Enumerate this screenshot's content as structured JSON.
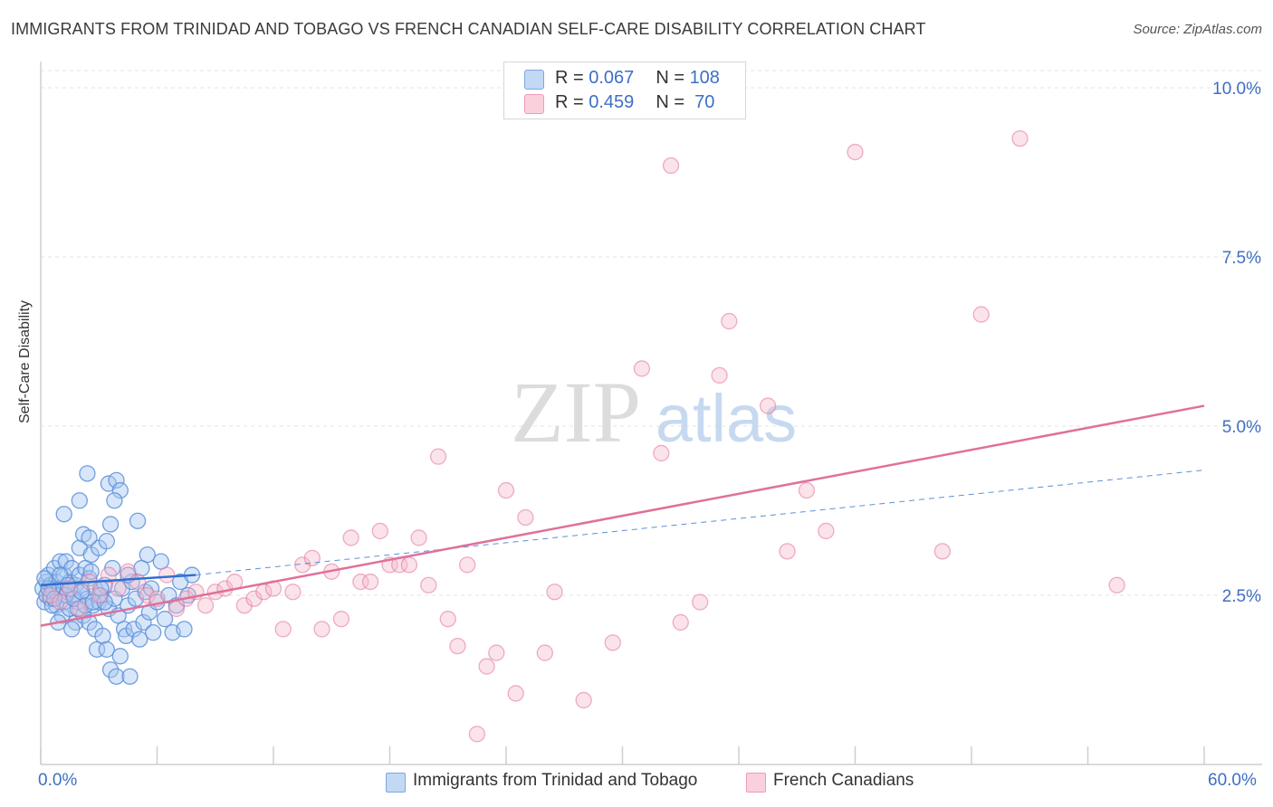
{
  "header": {
    "title": "IMMIGRANTS FROM TRINIDAD AND TOBAGO VS FRENCH CANADIAN SELF-CARE DISABILITY CORRELATION CHART",
    "source": "Source: ZipAtlas.com"
  },
  "watermark": {
    "text_zip": "ZIP",
    "text_atlas": "atlas"
  },
  "legend_top": {
    "series1": {
      "r_label": "R = ",
      "r_value": "0.067",
      "n_label": "N = ",
      "n_value": "108",
      "color": "#a9c8f2"
    },
    "series2": {
      "r_label": "R = ",
      "r_value": "0.459",
      "n_label": "N = ",
      "n_value": " 70",
      "color": "#f6b8cb"
    }
  },
  "chart_data": {
    "type": "scatter",
    "title": "IMMIGRANTS FROM TRINIDAD AND TOBAGO VS FRENCH CANADIAN SELF-CARE DISABILITY CORRELATION CHART",
    "xlabel": "",
    "ylabel": "Self-Care Disability",
    "xlim": [
      0,
      60
    ],
    "ylim": [
      0,
      10.5
    ],
    "x_tick_labels": [
      "0.0%",
      "60.0%"
    ],
    "y_ticks": [
      2.5,
      5.0,
      7.5,
      10.0
    ],
    "y_tick_labels": [
      "2.5%",
      "5.0%",
      "7.5%",
      "10.0%"
    ],
    "grid": true,
    "legend_placement": "bottom",
    "series": [
      {
        "name": "Immigrants from Trinidad and Tobago",
        "color": "#5b8fd9",
        "fill": "#a9c8f2",
        "trend": {
          "x": [
            0,
            8
          ],
          "y": [
            2.65,
            2.8
          ],
          "extended_to": [
            60,
            4.35
          ]
        },
        "points": [
          [
            0.1,
            2.6
          ],
          [
            0.2,
            2.4
          ],
          [
            0.3,
            2.7
          ],
          [
            0.3,
            2.5
          ],
          [
            0.4,
            2.8
          ],
          [
            0.5,
            2.65
          ],
          [
            0.5,
            2.45
          ],
          [
            0.6,
            2.55
          ],
          [
            0.7,
            2.9
          ],
          [
            0.8,
            2.35
          ],
          [
            0.8,
            2.7
          ],
          [
            0.9,
            2.5
          ],
          [
            1.0,
            3.0
          ],
          [
            1.0,
            2.6
          ],
          [
            1.1,
            2.2
          ],
          [
            1.2,
            2.8
          ],
          [
            1.2,
            2.4
          ],
          [
            1.3,
            3.0
          ],
          [
            1.4,
            2.55
          ],
          [
            1.5,
            2.3
          ],
          [
            1.5,
            2.7
          ],
          [
            1.6,
            2.9
          ],
          [
            1.7,
            2.5
          ],
          [
            1.8,
            2.1
          ],
          [
            1.8,
            2.65
          ],
          [
            1.9,
            2.4
          ],
          [
            2.0,
            3.2
          ],
          [
            2.0,
            2.8
          ],
          [
            2.1,
            2.6
          ],
          [
            2.2,
            2.2
          ],
          [
            2.2,
            3.4
          ],
          [
            2.3,
            2.9
          ],
          [
            2.4,
            2.45
          ],
          [
            2.5,
            2.1
          ],
          [
            2.5,
            2.75
          ],
          [
            2.6,
            3.1
          ],
          [
            2.7,
            2.35
          ],
          [
            2.8,
            2.0
          ],
          [
            2.8,
            2.6
          ],
          [
            2.9,
            1.7
          ],
          [
            3.0,
            2.4
          ],
          [
            3.0,
            3.2
          ],
          [
            3.1,
            2.5
          ],
          [
            3.2,
            1.9
          ],
          [
            3.3,
            2.65
          ],
          [
            3.4,
            1.7
          ],
          [
            3.5,
            2.3
          ],
          [
            3.6,
            1.4
          ],
          [
            3.7,
            2.9
          ],
          [
            3.8,
            2.45
          ],
          [
            3.9,
            1.3
          ],
          [
            4.0,
            2.2
          ],
          [
            4.1,
            1.6
          ],
          [
            4.2,
            2.6
          ],
          [
            4.3,
            2.0
          ],
          [
            4.4,
            1.9
          ],
          [
            4.5,
            2.35
          ],
          [
            4.6,
            1.3
          ],
          [
            4.7,
            2.7
          ],
          [
            4.8,
            2.0
          ],
          [
            4.9,
            2.45
          ],
          [
            5.0,
            3.6
          ],
          [
            5.1,
            1.85
          ],
          [
            5.2,
            2.9
          ],
          [
            5.3,
            2.1
          ],
          [
            5.4,
            2.55
          ],
          [
            5.5,
            3.1
          ],
          [
            5.6,
            2.25
          ],
          [
            5.7,
            2.6
          ],
          [
            5.8,
            1.95
          ],
          [
            6.0,
            2.4
          ],
          [
            6.2,
            3.0
          ],
          [
            6.4,
            2.15
          ],
          [
            6.6,
            2.5
          ],
          [
            6.8,
            1.95
          ],
          [
            7.0,
            2.35
          ],
          [
            7.2,
            2.7
          ],
          [
            7.4,
            2.0
          ],
          [
            7.6,
            2.5
          ],
          [
            7.8,
            2.8
          ],
          [
            2.4,
            4.3
          ],
          [
            2.0,
            3.9
          ],
          [
            3.5,
            4.15
          ],
          [
            3.9,
            4.2
          ],
          [
            4.1,
            4.05
          ],
          [
            3.8,
            3.9
          ],
          [
            1.2,
            3.7
          ],
          [
            2.5,
            3.35
          ],
          [
            3.6,
            3.55
          ],
          [
            3.4,
            3.3
          ],
          [
            2.6,
            2.85
          ],
          [
            1.9,
            2.3
          ],
          [
            0.9,
            2.1
          ],
          [
            1.6,
            2.0
          ],
          [
            1.3,
            2.5
          ],
          [
            0.6,
            2.35
          ],
          [
            0.4,
            2.6
          ],
          [
            0.2,
            2.75
          ],
          [
            0.7,
            2.45
          ],
          [
            1.0,
            2.8
          ],
          [
            1.4,
            2.65
          ],
          [
            1.7,
            2.45
          ],
          [
            2.1,
            2.55
          ],
          [
            2.3,
            2.35
          ],
          [
            2.7,
            2.4
          ],
          [
            3.1,
            2.6
          ],
          [
            3.3,
            2.4
          ],
          [
            4.5,
            2.8
          ]
        ]
      },
      {
        "name": "French Canadians",
        "color": "#e0709a",
        "fill": "#f6b8cb",
        "trend": {
          "x": [
            0,
            60
          ],
          "y": [
            2.05,
            5.3
          ]
        },
        "points": [
          [
            0.5,
            2.5
          ],
          [
            1.0,
            2.4
          ],
          [
            1.5,
            2.6
          ],
          [
            2.0,
            2.3
          ],
          [
            2.5,
            2.7
          ],
          [
            3.0,
            2.5
          ],
          [
            3.5,
            2.8
          ],
          [
            4.0,
            2.6
          ],
          [
            4.5,
            2.85
          ],
          [
            5.0,
            2.7
          ],
          [
            5.5,
            2.5
          ],
          [
            6.0,
            2.45
          ],
          [
            6.5,
            2.8
          ],
          [
            7.0,
            2.3
          ],
          [
            7.5,
            2.45
          ],
          [
            8.0,
            2.55
          ],
          [
            8.5,
            2.35
          ],
          [
            9.0,
            2.55
          ],
          [
            9.5,
            2.6
          ],
          [
            10.0,
            2.7
          ],
          [
            10.5,
            2.35
          ],
          [
            11.0,
            2.45
          ],
          [
            11.5,
            2.55
          ],
          [
            12.0,
            2.6
          ],
          [
            12.5,
            2.0
          ],
          [
            13.0,
            2.55
          ],
          [
            13.5,
            2.95
          ],
          [
            14.0,
            3.05
          ],
          [
            14.5,
            2.0
          ],
          [
            15.0,
            2.85
          ],
          [
            15.5,
            2.15
          ],
          [
            16.0,
            3.35
          ],
          [
            16.5,
            2.7
          ],
          [
            17.0,
            2.7
          ],
          [
            17.5,
            3.45
          ],
          [
            18.0,
            2.95
          ],
          [
            18.5,
            2.95
          ],
          [
            19.0,
            2.95
          ],
          [
            19.5,
            3.35
          ],
          [
            20.0,
            2.65
          ],
          [
            20.5,
            4.55
          ],
          [
            21.0,
            2.15
          ],
          [
            21.5,
            1.75
          ],
          [
            22.0,
            2.95
          ],
          [
            22.5,
            0.45
          ],
          [
            23.0,
            1.45
          ],
          [
            23.5,
            1.65
          ],
          [
            24.0,
            4.05
          ],
          [
            24.5,
            1.05
          ],
          [
            25.0,
            3.65
          ],
          [
            26.0,
            1.65
          ],
          [
            26.5,
            2.55
          ],
          [
            28.0,
            0.95
          ],
          [
            29.5,
            1.8
          ],
          [
            31.0,
            5.85
          ],
          [
            32.0,
            4.6
          ],
          [
            32.5,
            8.85
          ],
          [
            33.0,
            2.1
          ],
          [
            34.0,
            2.4
          ],
          [
            35.0,
            5.75
          ],
          [
            35.5,
            6.55
          ],
          [
            37.5,
            5.3
          ],
          [
            38.5,
            3.15
          ],
          [
            39.5,
            4.05
          ],
          [
            40.5,
            3.45
          ],
          [
            42.0,
            9.05
          ],
          [
            46.5,
            3.15
          ],
          [
            48.5,
            6.65
          ],
          [
            50.5,
            9.25
          ],
          [
            55.5,
            2.65
          ]
        ]
      }
    ]
  },
  "bottom_legend": {
    "item1": {
      "label": "Immigrants from Trinidad and Tobago",
      "color": "#a9c8f2"
    },
    "item2": {
      "label": "French Canadians",
      "color": "#f6b8cb"
    }
  }
}
